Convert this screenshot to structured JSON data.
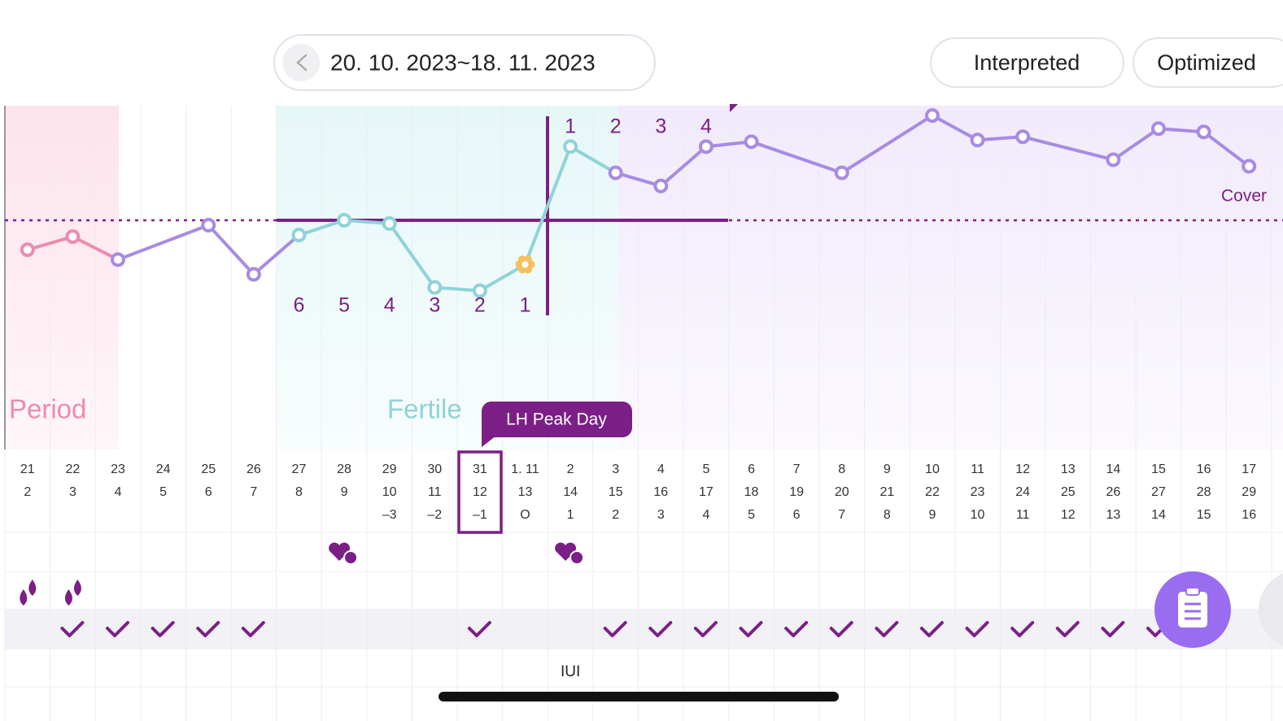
{
  "header": {
    "date_range": "20. 10. 2023~18. 11. 2023",
    "buttons": [
      "Interpreted",
      "Optimized"
    ]
  },
  "chart_data": {
    "type": "line",
    "x": [
      2,
      3,
      4,
      6,
      7,
      8,
      9,
      10,
      11,
      12,
      13,
      14,
      15,
      16,
      17,
      18,
      20,
      22,
      23,
      24,
      26,
      27,
      28,
      29
    ],
    "series": [
      {
        "values": [
          36.32,
          36.4,
          36.26,
          36.47,
          36.17,
          36.41,
          36.5,
          36.48,
          36.09,
          36.07,
          36.23,
          36.95,
          36.79,
          36.71,
          36.95,
          36.98,
          36.79,
          37.14,
          36.99,
          37.01,
          36.87,
          37.06,
          37.04,
          36.83
        ],
        "point_colors": [
          "#ec8bb0",
          "#ec8bb0",
          "#a88be3",
          "#a88be3",
          "#a88be3",
          "#8fd3d8",
          "#8fd3d8",
          "#8fd3d8",
          "#8fd3d8",
          "#8fd3d8",
          "#f5c15c",
          "#8fd3d8",
          "#a88be3",
          "#a88be3",
          "#a88be3",
          "#a88be3",
          "#a88be3",
          "#a88be3",
          "#a88be3",
          "#a88be3",
          "#a88be3",
          "#a88be3",
          "#a88be3",
          "#a88be3"
        ],
        "line_colors": [
          "#ec8bb0",
          "#ec8bb0",
          "#a88be3",
          "#a88be3",
          "#a88be3",
          "#8fd3d8",
          "#8fd3d8",
          "#8fd3d8",
          "#8fd3d8",
          "#8fd3d8",
          "#8fd3d8",
          "#8fd3d8",
          "#a88be3",
          "#a88be3",
          "#a88be3",
          "#a88be3",
          "#a88be3",
          "#a88be3",
          "#a88be3",
          "#a88be3",
          "#a88be3",
          "#a88be3",
          "#a88be3",
          "#a88be3"
        ]
      }
    ],
    "xlim": [
      1.5,
      29.5
    ],
    "ylim": [
      35.1,
      37.2
    ],
    "coverline": 36.5,
    "coverline_label": "Cover",
    "countdown": [
      6,
      5,
      4,
      3,
      2,
      1
    ],
    "countup": [
      1,
      2,
      3,
      4
    ],
    "phase_labels": [
      "Period",
      "Fertile"
    ],
    "tooltip": "LH Peak Day",
    "date_labels": [
      "21",
      "22",
      "23",
      "24",
      "25",
      "26",
      "27",
      "28",
      "29",
      "30",
      "31",
      "1. 11",
      "2",
      "3",
      "4",
      "5",
      "6",
      "7",
      "8",
      "9",
      "10",
      "11",
      "12",
      "13",
      "14",
      "15",
      "16",
      "17"
    ],
    "cycle_days": [
      2,
      3,
      4,
      5,
      6,
      7,
      8,
      9,
      10,
      11,
      12,
      13,
      14,
      15,
      16,
      17,
      18,
      19,
      20,
      21,
      22,
      23,
      24,
      25,
      26,
      27,
      28,
      29
    ],
    "relative_days": [
      null,
      null,
      null,
      null,
      null,
      null,
      null,
      null,
      "–3",
      "–2",
      "–1",
      "O",
      "1",
      "2",
      "3",
      "4",
      "5",
      "6",
      "7",
      "8",
      "9",
      "10",
      "11",
      "12",
      "13",
      "14",
      "15",
      "16"
    ]
  },
  "annotations": {
    "iui": "IUI"
  }
}
